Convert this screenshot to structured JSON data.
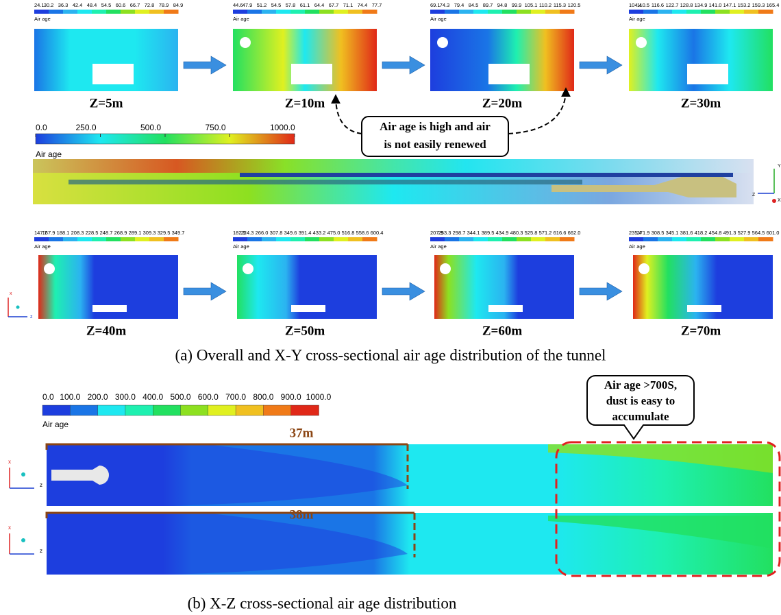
{
  "panel_a": {
    "sections_top": [
      {
        "label": "Z=5m",
        "legend_title": "Air age",
        "scale": [
          "24.1",
          "30.2",
          "36.3",
          "42.4",
          "48.4",
          "54.5",
          "60.6",
          "66.7",
          "72.8",
          "78.9",
          "84.9"
        ]
      },
      {
        "label": "Z=10m",
        "legend_title": "Air age",
        "scale": [
          "44.6",
          "47.9",
          "51.2",
          "54.5",
          "57.8",
          "61.1",
          "64.4",
          "67.7",
          "71.1",
          "74.4",
          "77.7"
        ]
      },
      {
        "label": "Z=20m",
        "legend_title": "Air age",
        "scale": [
          "69.1",
          "74.3",
          "79.4",
          "84.5",
          "89.7",
          "94.8",
          "99.9",
          "105.1",
          "110.2",
          "115.3",
          "120.5"
        ]
      },
      {
        "label": "Z=30m",
        "legend_title": "Air age",
        "scale": [
          "104.4",
          "110.5",
          "116.6",
          "122.7",
          "128.8",
          "134.9",
          "141.0",
          "147.1",
          "153.2",
          "159.3",
          "165.4"
        ]
      }
    ],
    "overall": {
      "legend_title": "Air age",
      "scale": [
        "0.0",
        "250.0",
        "500.0",
        "750.0",
        "1000.0"
      ],
      "triad": [
        "Y",
        "Z",
        "X"
      ]
    },
    "callout": [
      "Air age is high and air",
      "is not easily renewed"
    ],
    "sections_bottom": [
      {
        "label": "Z=40m",
        "legend_title": "Air age",
        "scale": [
          "147.7",
          "167.9",
          "188.1",
          "208.3",
          "228.5",
          "248.7",
          "268.9",
          "289.1",
          "309.3",
          "329.5",
          "349.7"
        ]
      },
      {
        "label": "Z=50m",
        "legend_title": "Air age",
        "scale": [
          "182.5",
          "224.3",
          "266.0",
          "307.8",
          "349.6",
          "391.4",
          "433.2",
          "475.0",
          "516.8",
          "558.6",
          "600.4"
        ]
      },
      {
        "label": "Z=60m",
        "legend_title": "Air age",
        "scale": [
          "207.9",
          "253.3",
          "298.7",
          "344.1",
          "389.5",
          "434.9",
          "480.3",
          "525.8",
          "571.2",
          "616.6",
          "662.0"
        ]
      },
      {
        "label": "Z=70m",
        "legend_title": "Air age",
        "scale": [
          "235.4",
          "271.9",
          "308.5",
          "345.1",
          "381.6",
          "418.2",
          "454.8",
          "491.3",
          "527.9",
          "564.5",
          "601.0"
        ]
      }
    ],
    "triad": [
      "x",
      "z"
    ],
    "caption": "(a) Overall and X-Y cross-sectional air age distribution of the tunnel"
  },
  "panel_b": {
    "legend_title": "Air age",
    "scale": [
      "0.0",
      "100.0",
      "200.0",
      "300.0",
      "400.0",
      "500.0",
      "600.0",
      "700.0",
      "800.0",
      "900.0",
      "1000.0"
    ],
    "dim_top": "37m",
    "dim_bottom": "38m",
    "callout": [
      "Air age >700S,",
      "dust is easy to",
      "accumulate"
    ],
    "triad_top": [
      "x",
      "z"
    ],
    "triad_bottom": [
      "x",
      "z"
    ],
    "caption": "(b) X-Z cross-sectional air age distribution"
  }
}
